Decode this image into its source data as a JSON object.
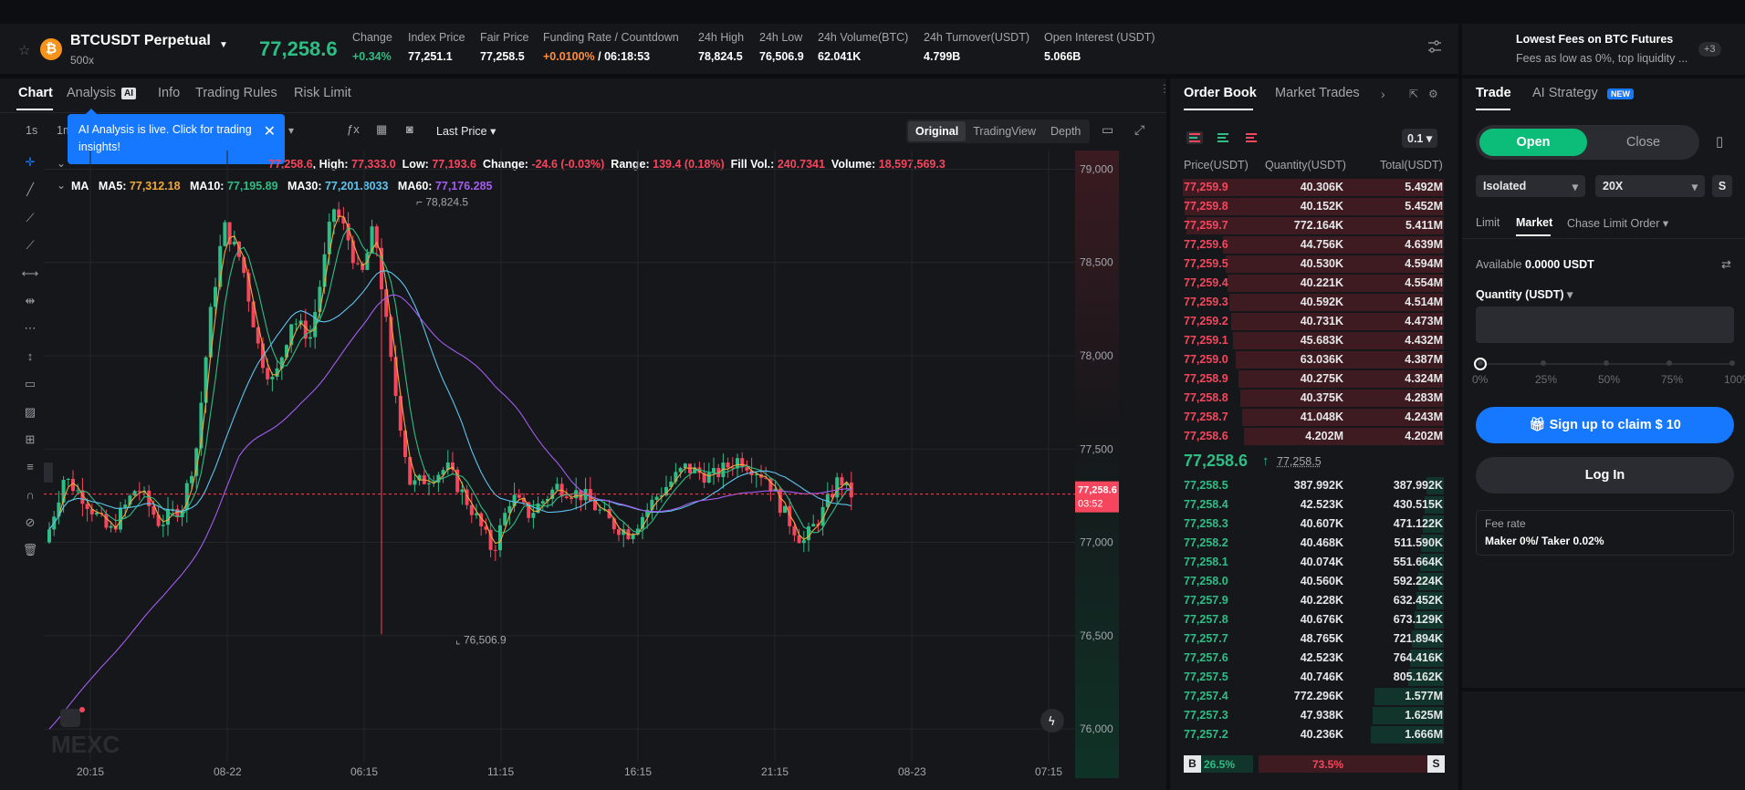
{
  "header": {
    "symbol": "BTCUSDT Perpetual",
    "leverage": "500x",
    "last_price": "77,258.6",
    "coin_letter": "₿",
    "stats": [
      {
        "label": "Change",
        "value": "+0.34%",
        "color": "green"
      },
      {
        "label": "Index Price",
        "value": "77,251.1"
      },
      {
        "label": "Fair Price",
        "value": "77,258.5"
      },
      {
        "label": "Funding Rate / Countdown",
        "value": "+0.0100%",
        "value2": " / 06:18:53",
        "color": "orange"
      },
      {
        "label": "24h High",
        "value": "78,824.5"
      },
      {
        "label": "24h Low",
        "value": "76,506.9"
      },
      {
        "label": "24h Volume(BTC)",
        "value": "62.041K"
      },
      {
        "label": "24h Turnover(USDT)",
        "value": "4.799B"
      },
      {
        "label": "Open Interest (USDT)",
        "value": "5.066B"
      }
    ]
  },
  "promo": {
    "title": "Lowest Fees on BTC Futures",
    "subtitle": "Fees as low as 0%, top liquidity ...",
    "badge": "+3"
  },
  "chart_tabs": [
    "Chart",
    "Analysis",
    "Info",
    "Trading Rules",
    "Risk Limit"
  ],
  "analysis_badge": "AI",
  "tooltip": "AI Analysis is live. Click for trading insights!",
  "toolbar": {
    "intervals": [
      "1s",
      "1m"
    ],
    "last_price": "Last Price",
    "views": [
      "Original",
      "TradingView",
      "Depth"
    ]
  },
  "ohlc": {
    "open_label": "Open:",
    "open": "77,258.6",
    "high_label": "High:",
    "high": "77,333.0",
    "low_label": "Low:",
    "low": "77,193.6",
    "change_label": "Change:",
    "change": "-24.6 (-0.03%)",
    "range_label": "Range:",
    "range": "139.4 (0.18%)",
    "fill_label": "Fill Vol.:",
    "fill": "240.7341",
    "volume_label": "Volume:",
    "volume": "18,597,569.3"
  },
  "ma": {
    "label": "MA",
    "ma5_label": "MA5:",
    "ma5": "77,312.18",
    "ma10_label": "MA10:",
    "ma10": "77,195.89",
    "ma30_label": "MA30:",
    "ma30": "77,201.8033",
    "ma60_label": "MA60:",
    "ma60": "77,176.285",
    "colors": {
      "ma5": "#f0a93b",
      "ma10": "#2ebd85",
      "ma30": "#5ec4f0",
      "ma60": "#a35cf0"
    }
  },
  "chart_data": {
    "type": "candlestick",
    "y_ticks": [
      "79,000",
      "78,500",
      "78,000",
      "77,500",
      "77,000",
      "76,500",
      "76,000"
    ],
    "x_ticks": [
      "20:15",
      "08-22",
      "06:15",
      "11:15",
      "16:15",
      "21:15",
      "08-23",
      "07:15"
    ],
    "ylim": [
      75800,
      79100
    ],
    "high_marker": "78,824.5",
    "low_marker": "76,506.9",
    "current_price": "77,258.6",
    "countdown": "03:52",
    "watermark": "MEXC"
  },
  "orderbook": {
    "tabs": [
      "Order Book",
      "Market Trades"
    ],
    "precision": "0.1",
    "headers": [
      "Price(USDT)",
      "Quantity(USDT)",
      "Total(USDT)"
    ],
    "asks": [
      [
        "77,259.9",
        "40.306K",
        "5.492M"
      ],
      [
        "77,259.8",
        "40.152K",
        "5.452M"
      ],
      [
        "77,259.7",
        "772.164K",
        "5.411M"
      ],
      [
        "77,259.6",
        "44.756K",
        "4.639M"
      ],
      [
        "77,259.5",
        "40.530K",
        "4.594M"
      ],
      [
        "77,259.4",
        "40.221K",
        "4.554M"
      ],
      [
        "77,259.3",
        "40.592K",
        "4.514M"
      ],
      [
        "77,259.2",
        "40.731K",
        "4.473M"
      ],
      [
        "77,259.1",
        "45.683K",
        "4.432M"
      ],
      [
        "77,259.0",
        "63.036K",
        "4.387M"
      ],
      [
        "77,258.9",
        "40.275K",
        "4.324M"
      ],
      [
        "77,258.8",
        "40.375K",
        "4.283M"
      ],
      [
        "77,258.7",
        "41.048K",
        "4.243M"
      ],
      [
        "77,258.6",
        "4.202M",
        "4.202M"
      ]
    ],
    "mid": "77,258.6",
    "mid_arrow": "↑",
    "mid_fair": "77,258.5",
    "bids": [
      [
        "77,258.5",
        "387.992K",
        "387.992K"
      ],
      [
        "77,258.4",
        "42.523K",
        "430.515K"
      ],
      [
        "77,258.3",
        "40.607K",
        "471.122K"
      ],
      [
        "77,258.2",
        "40.468K",
        "511.590K"
      ],
      [
        "77,258.1",
        "40.074K",
        "551.664K"
      ],
      [
        "77,258.0",
        "40.560K",
        "592.224K"
      ],
      [
        "77,257.9",
        "40.228K",
        "632.452K"
      ],
      [
        "77,257.8",
        "40.676K",
        "673.129K"
      ],
      [
        "77,257.7",
        "48.765K",
        "721.894K"
      ],
      [
        "77,257.6",
        "42.523K",
        "764.416K"
      ],
      [
        "77,257.5",
        "40.746K",
        "805.162K"
      ],
      [
        "77,257.4",
        "772.296K",
        "1.577M"
      ],
      [
        "77,257.3",
        "47.938K",
        "1.625M"
      ],
      [
        "77,257.2",
        "40.236K",
        "1.666M"
      ]
    ],
    "ratio": {
      "b": "B",
      "b_pct": "26.5%",
      "s_pct": "73.5%",
      "s": "S"
    }
  },
  "trade": {
    "tabs": [
      "Trade",
      "AI Strategy"
    ],
    "new_badge": "NEW",
    "open": "Open",
    "close": "Close",
    "margin_mode": "Isolated",
    "leverage": "20X",
    "s_btn": "S",
    "order_types": [
      "Limit",
      "Market",
      "Chase Limit Order"
    ],
    "available_label": "Available",
    "available": "0.0000 USDT",
    "quantity_label": "Quantity (USDT)",
    "slider_marks": [
      "0%",
      "25%",
      "50%",
      "75%",
      "100%"
    ],
    "signup": "Sign up to claim $ 10",
    "login": "Log In",
    "fee_label": "Fee rate",
    "fee_value": "Maker 0%/ Taker 0.02%"
  }
}
